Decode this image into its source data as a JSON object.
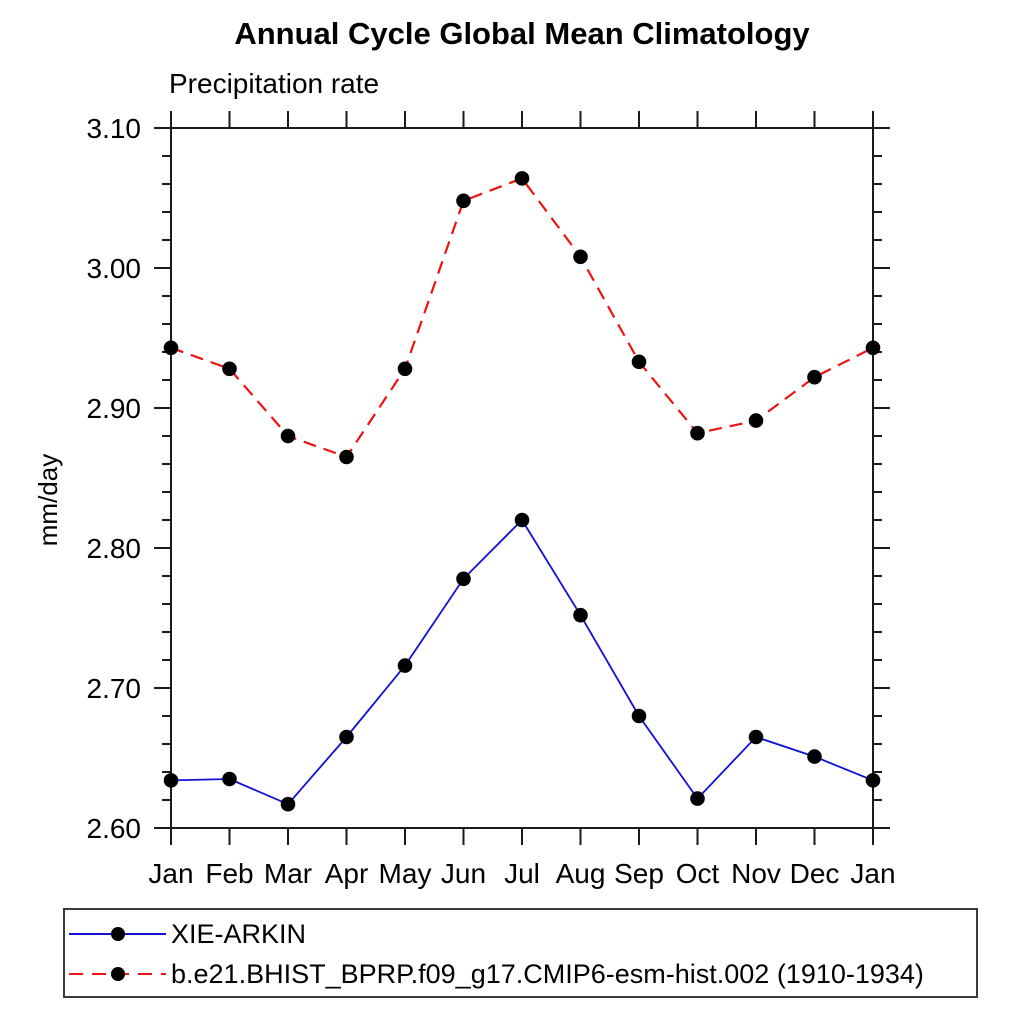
{
  "header": {
    "title": "Annual Cycle Global Mean Climatology",
    "subtitle": "Precipitation rate"
  },
  "chart_data": {
    "type": "line",
    "title": "Annual Cycle Global Mean Climatology",
    "subtitle": "Precipitation rate",
    "xlabel": "",
    "ylabel": "mm/day",
    "ylim": [
      2.6,
      3.1
    ],
    "y_major_step": 0.1,
    "y_minor_step": 0.02,
    "y_tick_labels": [
      "2.60",
      "2.70",
      "2.80",
      "2.90",
      "3.00",
      "3.10"
    ],
    "x_tick_labels": [
      "Jan",
      "Feb",
      "Mar",
      "Apr",
      "May",
      "Jun",
      "Jul",
      "Aug",
      "Sep",
      "Oct",
      "Nov",
      "Dec",
      "Jan"
    ],
    "grid": false,
    "legend_position": "bottom-left-box",
    "axis_color": "#1a1a1a",
    "marker_radius": 7.3,
    "series": [
      {
        "name": "XIE-ARKIN",
        "color": "#1111d6",
        "line_style": "solid",
        "line_width": 1.8,
        "marker": "circle",
        "marker_color": "#000000",
        "values": [
          2.634,
          2.635,
          2.617,
          2.665,
          2.716,
          2.778,
          2.82,
          2.752,
          2.68,
          2.621,
          2.665,
          2.651,
          2.634
        ]
      },
      {
        "name": "b.e21.BHIST_BPRP.f09_g17.CMIP6-esm-hist.002 (1910-1934)",
        "color": "#ee1313",
        "line_style": "dashed",
        "line_width": 2.2,
        "marker": "circle",
        "marker_color": "#000000",
        "values": [
          2.943,
          2.928,
          2.88,
          2.865,
          2.928,
          3.048,
          3.064,
          3.008,
          2.933,
          2.882,
          2.891,
          2.922,
          2.943
        ]
      }
    ]
  }
}
